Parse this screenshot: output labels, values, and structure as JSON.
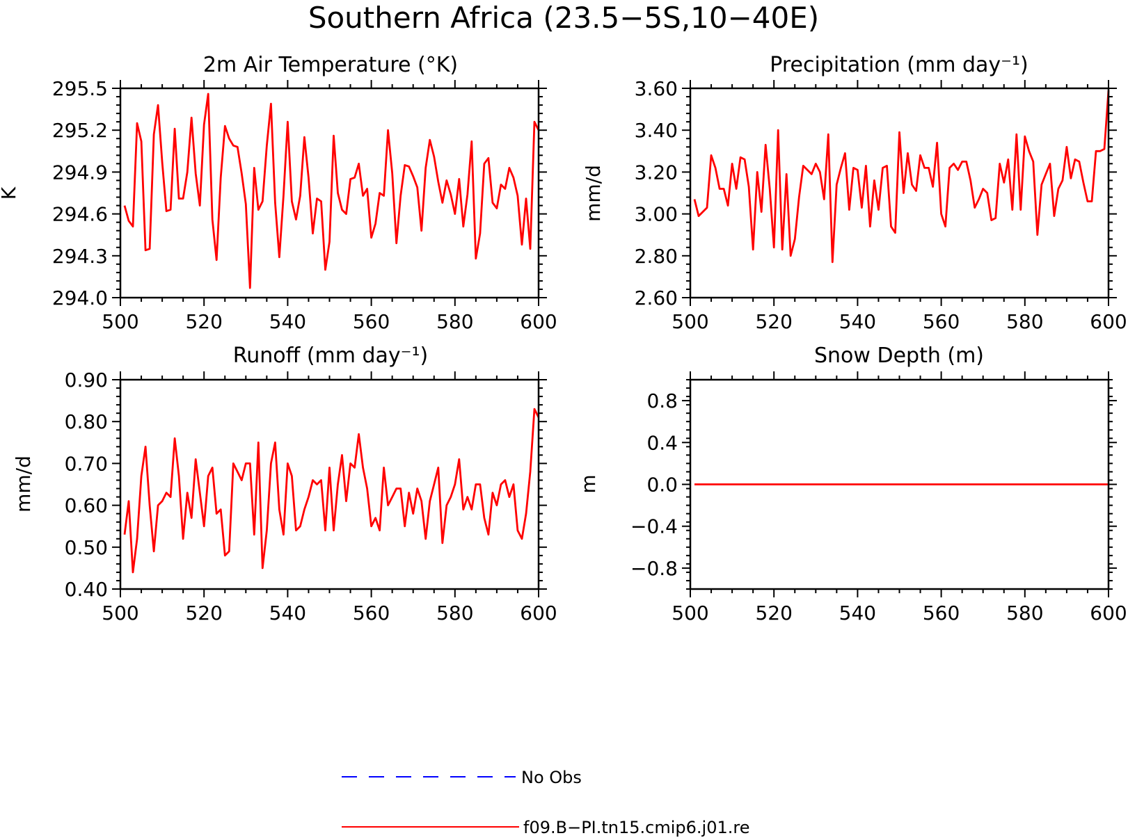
{
  "title": "Southern Africa (23.5−5S,10−40E)",
  "colors": {
    "model": "#ff0000",
    "obs": "#0000ff",
    "axis": "#000000"
  },
  "legend": [
    {
      "label": "No Obs",
      "color": "#0000ff",
      "style": "dashed"
    },
    {
      "label": "f09.B−PI.tn15.cmip6.j01.re",
      "color": "#ff0000",
      "style": "solid"
    }
  ],
  "chart_data": [
    {
      "type": "line",
      "title": "2m Air Temperature (°K)",
      "ylabel": "K",
      "xlabel": "",
      "xlim": [
        500,
        600
      ],
      "ylim": [
        294.0,
        295.5
      ],
      "xticks": [
        "500",
        "520",
        "540",
        "560",
        "580",
        "600"
      ],
      "yticks": [
        "294.0",
        "294.3",
        "294.6",
        "294.9",
        "295.2",
        "295.5"
      ],
      "grid": false,
      "series": [
        {
          "color": "#ff0000",
          "x": [
            501,
            502,
            503,
            504,
            505,
            506,
            507,
            508,
            509,
            510,
            511,
            512,
            513,
            514,
            515,
            516,
            517,
            518,
            519,
            520,
            521,
            522,
            523,
            524,
            525,
            526,
            527,
            528,
            529,
            530,
            531,
            532,
            533,
            534,
            535,
            536,
            537,
            538,
            539,
            540,
            541,
            542,
            543,
            544,
            545,
            546,
            547,
            548,
            549,
            550,
            551,
            552,
            553,
            554,
            555,
            556,
            557,
            558,
            559,
            560,
            561,
            562,
            563,
            564,
            565,
            566,
            567,
            568,
            569,
            570,
            571,
            572,
            573,
            574,
            575,
            576,
            577,
            578,
            579,
            580,
            581,
            582,
            583,
            584,
            585,
            586,
            587,
            588,
            589,
            590,
            591,
            592,
            593,
            594,
            595,
            596,
            597,
            598,
            599,
            600
          ],
          "values": [
            294.66,
            294.55,
            294.51,
            295.25,
            295.12,
            294.34,
            294.35,
            295.17,
            295.38,
            294.97,
            294.62,
            294.63,
            295.21,
            294.71,
            294.71,
            294.9,
            295.29,
            294.89,
            294.66,
            295.24,
            295.46,
            294.56,
            294.27,
            294.86,
            295.23,
            295.14,
            295.09,
            295.08,
            294.89,
            294.67,
            294.07,
            294.93,
            294.63,
            294.69,
            295.09,
            295.39,
            294.68,
            294.29,
            294.73,
            295.26,
            294.69,
            294.56,
            294.73,
            295.15,
            294.86,
            294.46,
            294.71,
            294.69,
            294.2,
            294.4,
            295.16,
            294.75,
            294.63,
            294.6,
            294.85,
            294.86,
            294.96,
            294.73,
            294.78,
            294.43,
            294.53,
            294.75,
            294.73,
            295.2,
            294.89,
            294.39,
            294.73,
            294.95,
            294.94,
            294.87,
            294.79,
            294.48,
            294.93,
            295.13,
            295.01,
            294.83,
            294.68,
            294.84,
            294.74,
            294.6,
            294.85,
            294.51,
            294.74,
            295.12,
            294.28,
            294.46,
            294.96,
            295.0,
            294.68,
            294.64,
            294.81,
            294.78,
            294.93,
            294.86,
            294.73,
            294.38,
            294.71,
            294.35,
            295.26,
            295.2
          ]
        }
      ]
    },
    {
      "type": "line",
      "title": "Precipitation (mm day⁻¹)",
      "ylabel": "mm/d",
      "xlabel": "",
      "xlim": [
        500,
        600
      ],
      "ylim": [
        2.6,
        3.6
      ],
      "xticks": [
        "500",
        "520",
        "540",
        "560",
        "580",
        "600"
      ],
      "yticks": [
        "2.60",
        "2.80",
        "3.00",
        "3.20",
        "3.40",
        "3.60"
      ],
      "grid": false,
      "series": [
        {
          "color": "#ff0000",
          "x": [
            501,
            502,
            503,
            504,
            505,
            506,
            507,
            508,
            509,
            510,
            511,
            512,
            513,
            514,
            515,
            516,
            517,
            518,
            519,
            520,
            521,
            522,
            523,
            524,
            525,
            526,
            527,
            528,
            529,
            530,
            531,
            532,
            533,
            534,
            535,
            536,
            537,
            538,
            539,
            540,
            541,
            542,
            543,
            544,
            545,
            546,
            547,
            548,
            549,
            550,
            551,
            552,
            553,
            554,
            555,
            556,
            557,
            558,
            559,
            560,
            561,
            562,
            563,
            564,
            565,
            566,
            567,
            568,
            569,
            570,
            571,
            572,
            573,
            574,
            575,
            576,
            577,
            578,
            579,
            580,
            581,
            582,
            583,
            584,
            585,
            586,
            587,
            588,
            589,
            590,
            591,
            592,
            593,
            594,
            595,
            596,
            597,
            598,
            599,
            600
          ],
          "values": [
            3.07,
            2.99,
            3.01,
            3.03,
            3.28,
            3.22,
            3.12,
            3.12,
            3.04,
            3.24,
            3.12,
            3.27,
            3.26,
            3.13,
            2.83,
            3.2,
            3.01,
            3.33,
            3.12,
            2.84,
            3.4,
            2.83,
            3.19,
            2.8,
            2.88,
            3.08,
            3.23,
            3.21,
            3.19,
            3.24,
            3.2,
            3.07,
            3.38,
            2.77,
            3.14,
            3.22,
            3.29,
            3.02,
            3.22,
            3.21,
            3.03,
            3.23,
            2.94,
            3.16,
            3.02,
            3.22,
            3.23,
            2.94,
            2.91,
            3.39,
            3.1,
            3.29,
            3.14,
            3.11,
            3.28,
            3.22,
            3.22,
            3.13,
            3.34,
            3.0,
            2.94,
            3.22,
            3.24,
            3.21,
            3.25,
            3.25,
            3.16,
            3.03,
            3.07,
            3.12,
            3.1,
            2.97,
            2.98,
            3.24,
            3.15,
            3.26,
            3.02,
            3.38,
            3.02,
            3.37,
            3.3,
            3.25,
            2.9,
            3.14,
            3.19,
            3.24,
            2.99,
            3.12,
            3.16,
            3.32,
            3.17,
            3.26,
            3.25,
            3.15,
            3.06,
            3.06,
            3.3,
            3.3,
            3.31,
            3.59
          ]
        }
      ]
    },
    {
      "type": "line",
      "title": "Runoff (mm day⁻¹)",
      "ylabel": "mm/d",
      "xlabel": "",
      "xlim": [
        500,
        600
      ],
      "ylim": [
        0.4,
        0.9
      ],
      "xticks": [
        "500",
        "520",
        "540",
        "560",
        "580",
        "600"
      ],
      "yticks": [
        "0.40",
        "0.50",
        "0.60",
        "0.70",
        "0.80",
        "0.90"
      ],
      "grid": false,
      "series": [
        {
          "color": "#ff0000",
          "x": [
            501,
            502,
            503,
            504,
            505,
            506,
            507,
            508,
            509,
            510,
            511,
            512,
            513,
            514,
            515,
            516,
            517,
            518,
            519,
            520,
            521,
            522,
            523,
            524,
            525,
            526,
            527,
            528,
            529,
            530,
            531,
            532,
            533,
            534,
            535,
            536,
            537,
            538,
            539,
            540,
            541,
            542,
            543,
            544,
            545,
            546,
            547,
            548,
            549,
            550,
            551,
            552,
            553,
            554,
            555,
            556,
            557,
            558,
            559,
            560,
            561,
            562,
            563,
            564,
            565,
            566,
            567,
            568,
            569,
            570,
            571,
            572,
            573,
            574,
            575,
            576,
            577,
            578,
            579,
            580,
            581,
            582,
            583,
            584,
            585,
            586,
            587,
            588,
            589,
            590,
            591,
            592,
            593,
            594,
            595,
            596,
            597,
            598,
            599,
            600
          ],
          "values": [
            0.53,
            0.61,
            0.44,
            0.52,
            0.67,
            0.74,
            0.6,
            0.49,
            0.6,
            0.61,
            0.63,
            0.62,
            0.76,
            0.67,
            0.52,
            0.63,
            0.57,
            0.71,
            0.63,
            0.55,
            0.67,
            0.69,
            0.58,
            0.59,
            0.48,
            0.49,
            0.7,
            0.68,
            0.66,
            0.7,
            0.7,
            0.53,
            0.75,
            0.45,
            0.54,
            0.7,
            0.75,
            0.59,
            0.53,
            0.7,
            0.67,
            0.54,
            0.55,
            0.59,
            0.62,
            0.66,
            0.65,
            0.66,
            0.54,
            0.69,
            0.54,
            0.65,
            0.72,
            0.61,
            0.7,
            0.69,
            0.77,
            0.69,
            0.64,
            0.55,
            0.57,
            0.54,
            0.69,
            0.6,
            0.62,
            0.64,
            0.64,
            0.55,
            0.63,
            0.58,
            0.64,
            0.61,
            0.52,
            0.61,
            0.65,
            0.69,
            0.51,
            0.6,
            0.62,
            0.65,
            0.71,
            0.59,
            0.62,
            0.59,
            0.65,
            0.65,
            0.57,
            0.53,
            0.63,
            0.6,
            0.65,
            0.66,
            0.62,
            0.65,
            0.54,
            0.52,
            0.58,
            0.68,
            0.83,
            0.81
          ]
        }
      ]
    },
    {
      "type": "line",
      "title": "Snow Depth (m)",
      "ylabel": "m",
      "xlabel": "",
      "xlim": [
        500,
        600
      ],
      "ylim": [
        -1.0,
        1.0
      ],
      "xticks": [
        "500",
        "520",
        "540",
        "560",
        "580",
        "600"
      ],
      "yticks": [
        "−0.8",
        "−0.4",
        "0.0",
        "0.4",
        "0.8"
      ],
      "grid": false,
      "series": [
        {
          "color": "#ff0000",
          "x": [
            501,
            600
          ],
          "values": [
            0.0,
            0.0
          ]
        }
      ]
    }
  ]
}
